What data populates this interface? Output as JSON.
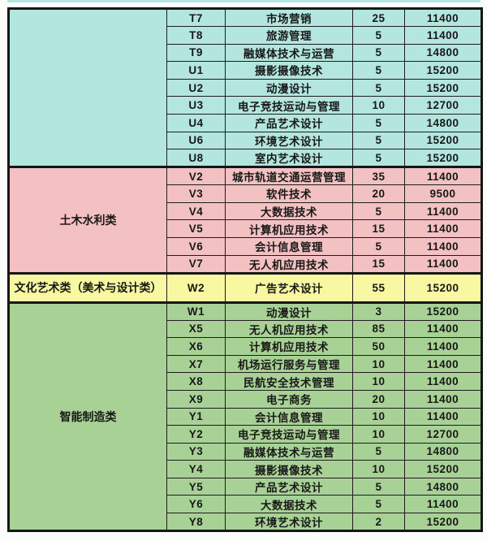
{
  "page": {
    "background": "#fcfcfb",
    "border_color": "#161616",
    "text_color": "#181818"
  },
  "table": {
    "sections": [
      {
        "category": "",
        "category_name": "unlabeled-top-section",
        "color": "#b2e6de",
        "tall": false,
        "rows": [
          {
            "code": "T7",
            "major": "市场营销",
            "quota": "25",
            "fee": "11400"
          },
          {
            "code": "T8",
            "major": "旅游管理",
            "quota": "5",
            "fee": "11400"
          },
          {
            "code": "T9",
            "major": "融媒体技术与运营",
            "quota": "5",
            "fee": "14800"
          },
          {
            "code": "U1",
            "major": "摄影摄像技术",
            "quota": "5",
            "fee": "15200"
          },
          {
            "code": "U2",
            "major": "动漫设计",
            "quota": "5",
            "fee": "15200"
          },
          {
            "code": "U3",
            "major": "电子竞技运动与管理",
            "quota": "10",
            "fee": "12700"
          },
          {
            "code": "U4",
            "major": "产品艺术设计",
            "quota": "5",
            "fee": "14800"
          },
          {
            "code": "U6",
            "major": "环境艺术设计",
            "quota": "5",
            "fee": "15200"
          },
          {
            "code": "U8",
            "major": "室内艺术设计",
            "quota": "5",
            "fee": "15200"
          }
        ]
      },
      {
        "category": "土木水利类",
        "category_name": "civil-water-section",
        "color": "#f3c1c2",
        "tall": false,
        "rows": [
          {
            "code": "V2",
            "major": "城市轨道交通运营管理",
            "quota": "35",
            "fee": "11400"
          },
          {
            "code": "V3",
            "major": "软件技术",
            "quota": "20",
            "fee": "9500"
          },
          {
            "code": "V4",
            "major": "大数据技术",
            "quota": "5",
            "fee": "11400"
          },
          {
            "code": "V5",
            "major": "计算机应用技术",
            "quota": "15",
            "fee": "11400"
          },
          {
            "code": "V6",
            "major": "会计信息管理",
            "quota": "5",
            "fee": "11400"
          },
          {
            "code": "V7",
            "major": "无人机应用技术",
            "quota": "15",
            "fee": "11400"
          }
        ]
      },
      {
        "category": "文化艺术类（美术与设计类）",
        "category_name": "culture-art-section",
        "color": "#f8f8a2",
        "tall": true,
        "rows": [
          {
            "code": "W2",
            "major": "广告艺术设计",
            "quota": "55",
            "fee": "15200"
          }
        ]
      },
      {
        "category": "智能制造类",
        "category_name": "intelligent-manufacturing-section",
        "color": "#a8d295",
        "tall": false,
        "rows": [
          {
            "code": "W1",
            "major": "动漫设计",
            "quota": "3",
            "fee": "15200"
          },
          {
            "code": "X5",
            "major": "无人机应用技术",
            "quota": "85",
            "fee": "11400"
          },
          {
            "code": "X6",
            "major": "计算机应用技术",
            "quota": "50",
            "fee": "11400"
          },
          {
            "code": "X7",
            "major": "机场运行服务与管理",
            "quota": "10",
            "fee": "11400"
          },
          {
            "code": "X8",
            "major": "民航安全技术管理",
            "quota": "10",
            "fee": "11400"
          },
          {
            "code": "X9",
            "major": "电子商务",
            "quota": "20",
            "fee": "11400"
          },
          {
            "code": "Y1",
            "major": "会计信息管理",
            "quota": "10",
            "fee": "11400"
          },
          {
            "code": "Y2",
            "major": "电子竞技运动与管理",
            "quota": "10",
            "fee": "12700"
          },
          {
            "code": "Y3",
            "major": "融媒体技术与运营",
            "quota": "5",
            "fee": "14800"
          },
          {
            "code": "Y4",
            "major": "摄影摄像技术",
            "quota": "10",
            "fee": "15200"
          },
          {
            "code": "Y5",
            "major": "产品艺术设计",
            "quota": "5",
            "fee": "14800"
          },
          {
            "code": "Y6",
            "major": "大数据技术",
            "quota": "5",
            "fee": "11400"
          },
          {
            "code": "Y8",
            "major": "环境艺术设计",
            "quota": "2",
            "fee": "15200"
          }
        ]
      }
    ]
  }
}
